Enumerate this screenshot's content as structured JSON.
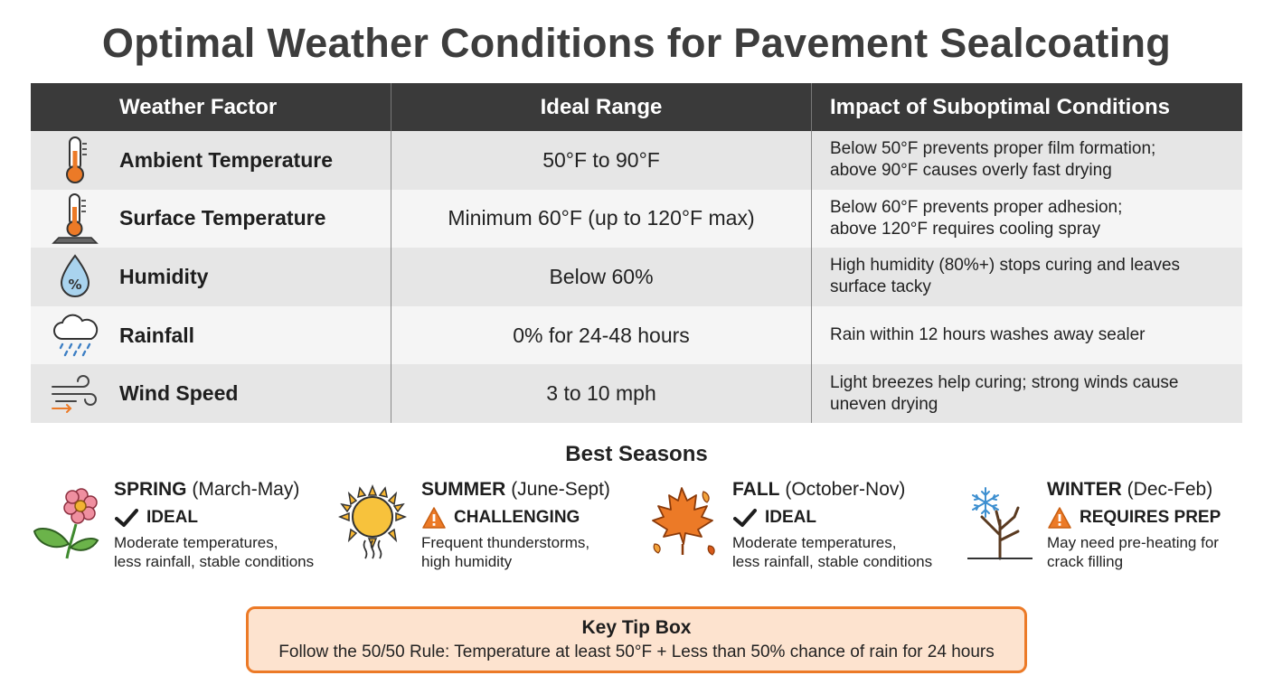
{
  "title": "Optimal Weather Conditions for Pavement Sealcoating",
  "table": {
    "headers": [
      "Weather Factor",
      "Ideal Range",
      "Impact of Suboptimal Conditions"
    ],
    "rows": [
      {
        "icon": "thermometer-icon",
        "factor": "Ambient Temperature",
        "range": "50°F to 90°F",
        "impact_1": "Below 50°F prevents proper film formation;",
        "impact_2": "above 90°F causes overly fast drying"
      },
      {
        "icon": "surface-thermometer-icon",
        "factor": "Surface Temperature",
        "range": "Minimum 60°F (up to 120°F max)",
        "impact_1": "Below 60°F prevents proper adhesion;",
        "impact_2": "above 120°F requires cooling spray"
      },
      {
        "icon": "humidity-drop-icon",
        "factor": "Humidity",
        "range": "Below 60%",
        "impact_1": "High humidity (80%+) stops curing and leaves",
        "impact_2": "surface tacky"
      },
      {
        "icon": "rain-cloud-icon",
        "factor": "Rainfall",
        "range": "0% for 24-48 hours",
        "impact_1": "Rain within 12 hours washes away sealer",
        "impact_2": ""
      },
      {
        "icon": "wind-icon",
        "factor": "Wind Speed",
        "range": "3 to 10 mph",
        "impact_1": "Light breezes help curing; strong winds cause",
        "impact_2": "uneven drying"
      }
    ]
  },
  "seasons_title": "Best Seasons",
  "seasons": [
    {
      "icon": "flower-icon",
      "name": "SPRING",
      "months": "(March-May)",
      "status_icon": "checkmark-icon",
      "status": "IDEAL",
      "desc_1": "Moderate temperatures,",
      "desc_2": "less rainfall, stable conditions"
    },
    {
      "icon": "sun-icon",
      "name": "SUMMER",
      "months": "(June-Sept)",
      "status_icon": "warning-icon",
      "status": "CHALLENGING",
      "desc_1": "Frequent thunderstorms,",
      "desc_2": "high humidity"
    },
    {
      "icon": "maple-leaf-icon",
      "name": "FALL",
      "months": "(October-Nov)",
      "status_icon": "checkmark-icon",
      "status": "IDEAL",
      "desc_1": "Moderate temperatures,",
      "desc_2": "less rainfall, stable conditions"
    },
    {
      "icon": "snowflake-tree-icon",
      "name": "WINTER",
      "months": "(Dec-Feb)",
      "status_icon": "warning-icon",
      "status": "REQUIRES PREP",
      "desc_1": "May need pre-heating for",
      "desc_2": "crack filling"
    }
  ],
  "tip": {
    "title": "Key Tip Box",
    "text": "Follow the 50/50 Rule: Temperature at least 50°F + Less than 50% chance of rain for 24 hours"
  },
  "colors": {
    "accent": "#ec7a27",
    "header_bg": "#3a3a3a",
    "tip_bg": "#fde3cf",
    "row_odd": "#e6e6e6",
    "row_even": "#f5f5f5"
  }
}
